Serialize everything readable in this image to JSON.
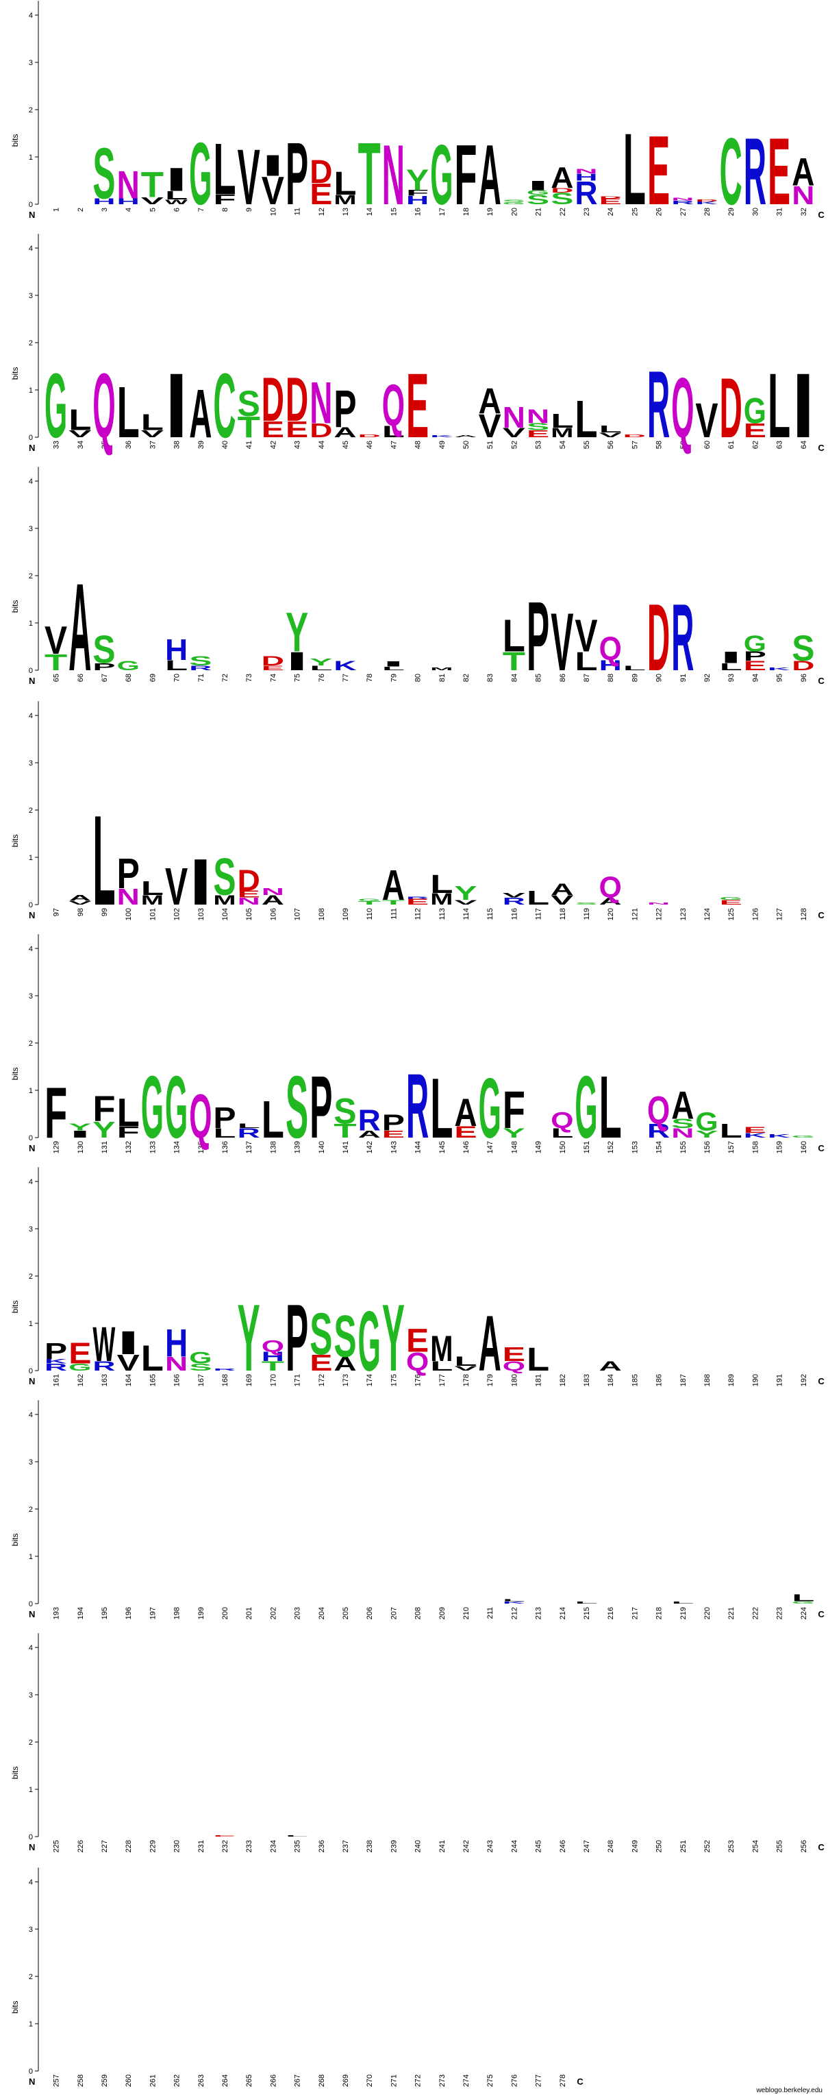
{
  "chart_data": {
    "type": "sequence-logo",
    "ylabel": "bits",
    "y_ticks": [
      "0",
      "1",
      "2",
      "3",
      "4"
    ],
    "ylim": [
      0,
      4.3
    ],
    "n_label": "N",
    "c_label": "C",
    "positions_per_row": 32,
    "total_positions": 278,
    "colors": {
      "green": "#22b822",
      "blue": "#0a0ad0",
      "red": "#d40000",
      "magenta": "#c800c8",
      "black": "#000000"
    },
    "letter_colors": {
      "G": "green",
      "S": "green",
      "T": "green",
      "Y": "green",
      "C": "green",
      "N": "magenta",
      "Q": "magenta",
      "K": "blue",
      "R": "blue",
      "H": "blue",
      "D": "red",
      "E": "red",
      "A": "black",
      "V": "black",
      "L": "black",
      "I": "black",
      "P": "black",
      "W": "black",
      "F": "black",
      "M": "black"
    },
    "columns": {
      "3": [
        [
          "H",
          0.12
        ],
        [
          "S",
          1.1
        ]
      ],
      "4": [
        [
          "H",
          0.12
        ],
        [
          "N",
          0.6
        ]
      ],
      "5": [
        [
          "V",
          0.15
        ],
        [
          "T",
          0.55
        ]
      ],
      "6": [
        [
          "W",
          0.1
        ],
        [
          "L",
          0.18
        ],
        [
          "I",
          0.5
        ]
      ],
      "7": [
        [
          "G",
          1.35
        ]
      ],
      "8": [
        [
          "F",
          0.22
        ],
        [
          "L",
          1.1
        ]
      ],
      "9": [
        [
          "V",
          1.2
        ]
      ],
      "10": [
        [
          "V",
          0.6
        ],
        [
          "I",
          0.45
        ]
      ],
      "11": [
        [
          "P",
          1.35
        ]
      ],
      "12": [
        [
          "E",
          0.45
        ],
        [
          "D",
          0.5
        ]
      ],
      "13": [
        [
          "M",
          0.2
        ],
        [
          "L",
          0.5
        ]
      ],
      "14": [
        [
          "T",
          1.35
        ]
      ],
      "15": [
        [
          "N",
          1.3
        ]
      ],
      "16": [
        [
          "H",
          0.18
        ],
        [
          "F",
          0.12
        ],
        [
          "Y",
          0.45
        ]
      ],
      "17": [
        [
          "G",
          1.3
        ]
      ],
      "18": [
        [
          "F",
          1.3
        ]
      ],
      "19": [
        [
          "A",
          1.3
        ]
      ],
      "20": [
        [
          "G",
          0.05
        ],
        [
          "S",
          0.05
        ]
      ],
      "21": [
        [
          "S",
          0.2
        ],
        [
          "G",
          0.1
        ],
        [
          "I",
          0.2
        ]
      ],
      "22": [
        [
          "S",
          0.25
        ],
        [
          "D",
          0.1
        ],
        [
          "A",
          0.45
        ]
      ],
      "23": [
        [
          "R",
          0.5
        ],
        [
          "H",
          0.15
        ],
        [
          "N",
          0.1
        ]
      ],
      "24": [
        [
          "E",
          0.12
        ],
        [
          "D",
          0.05
        ]
      ],
      "25": [
        [
          "L",
          1.55
        ]
      ],
      "26": [
        [
          "E",
          1.5
        ]
      ],
      "27": [
        [
          "R",
          0.08
        ],
        [
          "N",
          0.06
        ]
      ],
      "28": [
        [
          "K",
          0.06
        ],
        [
          "D",
          0.05
        ]
      ],
      "29": [
        [
          "C",
          1.45
        ]
      ],
      "30": [
        [
          "R",
          1.45
        ]
      ],
      "31": [
        [
          "E",
          1.45
        ]
      ],
      "32": [
        [
          "N",
          0.4
        ],
        [
          "A",
          0.6
        ]
      ],
      "33": [
        [
          "G",
          1.4
        ]
      ],
      "34": [
        [
          "V",
          0.15
        ],
        [
          "L",
          0.45
        ]
      ],
      "35": [
        [
          "Q",
          1.4
        ]
      ],
      "36": [
        [
          "L",
          1.1
        ]
      ],
      "37": [
        [
          "V",
          0.15
        ],
        [
          "L",
          0.35
        ]
      ],
      "38": [
        [
          "I",
          1.4
        ]
      ],
      "39": [
        [
          "A",
          1.05
        ]
      ],
      "40": [
        [
          "C",
          1.4
        ]
      ],
      "41": [
        [
          "T",
          0.45
        ],
        [
          "S",
          0.55
        ]
      ],
      "42": [
        [
          "E",
          0.35
        ],
        [
          "D",
          0.95
        ]
      ],
      "43": [
        [
          "E",
          0.35
        ],
        [
          "D",
          0.95
        ]
      ],
      "44": [
        [
          "D",
          0.3
        ],
        [
          "N",
          0.9
        ]
      ],
      "45": [
        [
          "A",
          0.22
        ],
        [
          "P",
          0.8
        ]
      ],
      "46": [
        [
          "D",
          0.06
        ]
      ],
      "47": [
        [
          "L",
          0.25
        ],
        [
          "Q",
          0.9
        ]
      ],
      "48": [
        [
          "E",
          1.4
        ]
      ],
      "49": [
        [
          "K",
          0.05
        ]
      ],
      "50": [
        [
          "A",
          0.05
        ]
      ],
      "51": [
        [
          "V",
          0.5
        ],
        [
          "A",
          0.55
        ]
      ],
      "52": [
        [
          "V",
          0.2
        ],
        [
          "N",
          0.45
        ]
      ],
      "53": [
        [
          "E",
          0.15
        ],
        [
          "S",
          0.15
        ],
        [
          "N",
          0.3
        ]
      ],
      "54": [
        [
          "M",
          0.2
        ],
        [
          "L",
          0.3
        ]
      ],
      "55": [
        [
          "L",
          0.8
        ]
      ],
      "56": [
        [
          "V",
          0.1
        ],
        [
          "L",
          0.15
        ]
      ],
      "57": [
        [
          "D",
          0.06
        ]
      ],
      "58": [
        [
          "R",
          1.45
        ]
      ],
      "59": [
        [
          "Q",
          1.3
        ]
      ],
      "60": [
        [
          "V",
          0.75
        ]
      ],
      "61": [
        [
          "D",
          1.3
        ]
      ],
      "62": [
        [
          "E",
          0.3
        ],
        [
          "G",
          0.55
        ]
      ],
      "63": [
        [
          "L",
          1.4
        ]
      ],
      "64": [
        [
          "I",
          1.4
        ]
      ],
      "65": [
        [
          "T",
          0.35
        ],
        [
          "V",
          0.6
        ]
      ],
      "66": [
        [
          "A",
          1.9
        ]
      ],
      "67": [
        [
          "P",
          0.15
        ],
        [
          "S",
          0.6
        ]
      ],
      "68": [
        [
          "G",
          0.2
        ]
      ],
      "70": [
        [
          "L",
          0.22
        ],
        [
          "H",
          0.45
        ]
      ],
      "71": [
        [
          "R",
          0.1
        ],
        [
          "S",
          0.2
        ]
      ],
      "74": [
        [
          "E",
          0.1
        ],
        [
          "D",
          0.2
        ]
      ],
      "75": [
        [
          "I",
          0.4
        ],
        [
          "Y",
          0.85
        ]
      ],
      "76": [
        [
          "L",
          0.1
        ],
        [
          "Y",
          0.15
        ]
      ],
      "77": [
        [
          "K",
          0.2
        ]
      ],
      "79": [
        [
          "L",
          0.08
        ],
        [
          "I",
          0.12
        ]
      ],
      "81": [
        [
          "M",
          0.06
        ]
      ],
      "84": [
        [
          "T",
          0.4
        ],
        [
          "L",
          0.7
        ]
      ],
      "85": [
        [
          "P",
          1.5
        ]
      ],
      "86": [
        [
          "V",
          1.25
        ]
      ],
      "87": [
        [
          "L",
          0.4
        ],
        [
          "V",
          0.7
        ]
      ],
      "88": [
        [
          "H",
          0.22
        ],
        [
          "Q",
          0.5
        ]
      ],
      "89": [
        [
          "L",
          0.1
        ]
      ],
      "90": [
        [
          "D",
          1.45
        ]
      ],
      "91": [
        [
          "R",
          1.45
        ]
      ],
      "93": [
        [
          "L",
          0.15
        ],
        [
          "I",
          0.25
        ]
      ],
      "94": [
        [
          "E",
          0.2
        ],
        [
          "P",
          0.2
        ],
        [
          "G",
          0.35
        ]
      ],
      "95": [
        [
          "K",
          0.06
        ]
      ],
      "96": [
        [
          "D",
          0.2
        ],
        [
          "S",
          0.55
        ]
      ],
      "98": [
        [
          "V",
          0.08
        ],
        [
          "A",
          0.12
        ]
      ],
      "99": [
        [
          "L",
          1.95
        ]
      ],
      "100": [
        [
          "N",
          0.35
        ],
        [
          "P",
          0.65
        ]
      ],
      "101": [
        [
          "M",
          0.2
        ],
        [
          "L",
          0.3
        ]
      ],
      "102": [
        [
          "V",
          0.8
        ]
      ],
      "103": [
        [
          "I",
          1.0
        ]
      ],
      "104": [
        [
          "M",
          0.2
        ],
        [
          "S",
          0.8
        ]
      ],
      "105": [
        [
          "N",
          0.15
        ],
        [
          "E",
          0.15
        ],
        [
          "D",
          0.45
        ]
      ],
      "106": [
        [
          "A",
          0.2
        ],
        [
          "N",
          0.15
        ]
      ],
      "110": [
        [
          "T",
          0.08
        ],
        [
          "G",
          0.05
        ]
      ],
      "111": [
        [
          "T",
          0.1
        ],
        [
          "A",
          0.65
        ]
      ],
      "112": [
        [
          "E",
          0.12
        ],
        [
          "R",
          0.05
        ]
      ],
      "113": [
        [
          "M",
          0.25
        ],
        [
          "L",
          0.4
        ]
      ],
      "114": [
        [
          "V",
          0.1
        ],
        [
          "Y",
          0.3
        ]
      ],
      "116": [
        [
          "R",
          0.15
        ],
        [
          "V",
          0.1
        ]
      ],
      "117": [
        [
          "L",
          0.3
        ]
      ],
      "118": [
        [
          "V",
          0.2
        ],
        [
          "A",
          0.25
        ]
      ],
      "119": [
        [
          "S",
          0.05
        ]
      ],
      "120": [
        [
          "A",
          0.15
        ],
        [
          "Q",
          0.45
        ]
      ],
      "122": [
        [
          "N",
          0.05
        ]
      ],
      "125": [
        [
          "E",
          0.1
        ],
        [
          "G",
          0.06
        ]
      ],
      "129": [
        [
          "F",
          1.1
        ]
      ],
      "130": [
        [
          "I",
          0.15
        ],
        [
          "Y",
          0.15
        ]
      ],
      "131": [
        [
          "Y",
          0.35
        ],
        [
          "F",
          0.55
        ]
      ],
      "132": [
        [
          "F",
          0.25
        ],
        [
          "L",
          0.6
        ]
      ],
      "133": [
        [
          "G",
          1.35
        ]
      ],
      "134": [
        [
          "G",
          1.35
        ]
      ],
      "135": [
        [
          "Q",
          0.95
        ]
      ],
      "136": [
        [
          "L",
          0.2
        ],
        [
          "P",
          0.45
        ]
      ],
      "137": [
        [
          "R",
          0.2
        ],
        [
          "L",
          0.1
        ]
      ],
      "138": [
        [
          "L",
          0.8
        ]
      ],
      "139": [
        [
          "S",
          1.35
        ]
      ],
      "140": [
        [
          "P",
          1.35
        ]
      ],
      "141": [
        [
          "T",
          0.3
        ],
        [
          "S",
          0.55
        ]
      ],
      "142": [
        [
          "A",
          0.15
        ],
        [
          "R",
          0.45
        ]
      ],
      "143": [
        [
          "E",
          0.15
        ],
        [
          "P",
          0.35
        ]
      ],
      "144": [
        [
          "R",
          1.4
        ]
      ],
      "145": [
        [
          "L",
          1.3
        ]
      ],
      "146": [
        [
          "E",
          0.25
        ],
        [
          "A",
          0.6
        ]
      ],
      "147": [
        [
          "G",
          1.3
        ]
      ],
      "148": [
        [
          "Y",
          0.2
        ],
        [
          "F",
          0.8
        ]
      ],
      "150": [
        [
          "L",
          0.2
        ],
        [
          "Q",
          0.35
        ]
      ],
      "151": [
        [
          "G",
          1.35
        ]
      ],
      "152": [
        [
          "L",
          1.35
        ]
      ],
      "154": [
        [
          "R",
          0.3
        ],
        [
          "Q",
          0.6
        ]
      ],
      "155": [
        [
          "N",
          0.2
        ],
        [
          "S",
          0.2
        ],
        [
          "A",
          0.6
        ]
      ],
      "156": [
        [
          "Y",
          0.15
        ],
        [
          "G",
          0.4
        ]
      ],
      "157": [
        [
          "L",
          0.3
        ]
      ],
      "158": [
        [
          "K",
          0.1
        ],
        [
          "E",
          0.12
        ]
      ],
      "159": [
        [
          "K",
          0.08
        ]
      ],
      "160": [
        [
          "G",
          0.05
        ]
      ],
      "161": [
        [
          "R",
          0.15
        ],
        [
          "K",
          0.1
        ],
        [
          "P",
          0.35
        ]
      ],
      "162": [
        [
          "G",
          0.15
        ],
        [
          "E",
          0.45
        ]
      ],
      "163": [
        [
          "R",
          0.2
        ],
        [
          "W",
          0.75
        ]
      ],
      "164": [
        [
          "V",
          0.35
        ],
        [
          "I",
          0.5
        ]
      ],
      "165": [
        [
          "L",
          0.55
        ]
      ],
      "166": [
        [
          "N",
          0.3
        ],
        [
          "H",
          0.6
        ]
      ],
      "167": [
        [
          "S",
          0.15
        ],
        [
          "G",
          0.25
        ]
      ],
      "168": [
        [
          "R",
          0.05
        ]
      ],
      "169": [
        [
          "Y",
          1.45
        ]
      ],
      "170": [
        [
          "T",
          0.2
        ],
        [
          "H",
          0.2
        ],
        [
          "Q",
          0.25
        ]
      ],
      "171": [
        [
          "P",
          1.45
        ]
      ],
      "172": [
        [
          "E",
          0.35
        ],
        [
          "S",
          0.9
        ]
      ],
      "173": [
        [
          "A",
          0.3
        ],
        [
          "S",
          0.9
        ]
      ],
      "174": [
        [
          "G",
          1.3
        ]
      ],
      "175": [
        [
          "Y",
          1.45
        ]
      ],
      "176": [
        [
          "Q",
          0.4
        ],
        [
          "E",
          0.5
        ]
      ],
      "177": [
        [
          "L",
          0.2
        ],
        [
          "M",
          0.55
        ]
      ],
      "178": [
        [
          "V",
          0.1
        ],
        [
          "L",
          0.2
        ]
      ],
      "179": [
        [
          "A",
          1.2
        ]
      ],
      "180": [
        [
          "Q",
          0.2
        ],
        [
          "E",
          0.3
        ]
      ],
      "181": [
        [
          "L",
          0.5
        ]
      ],
      "184": [
        [
          "A",
          0.2
        ]
      ],
      "212": [
        [
          "K",
          0.05
        ],
        [
          "L",
          0.05
        ]
      ],
      "215": [
        [
          "L",
          0.05
        ]
      ],
      "219": [
        [
          "L",
          0.05
        ]
      ],
      "224": [
        [
          "G",
          0.05
        ],
        [
          "L",
          0.15
        ]
      ],
      "232": [
        [
          "E",
          0.03
        ]
      ],
      "235": [
        [
          "L",
          0.03
        ]
      ]
    }
  },
  "credit": "weblogo.berkeley.edu"
}
